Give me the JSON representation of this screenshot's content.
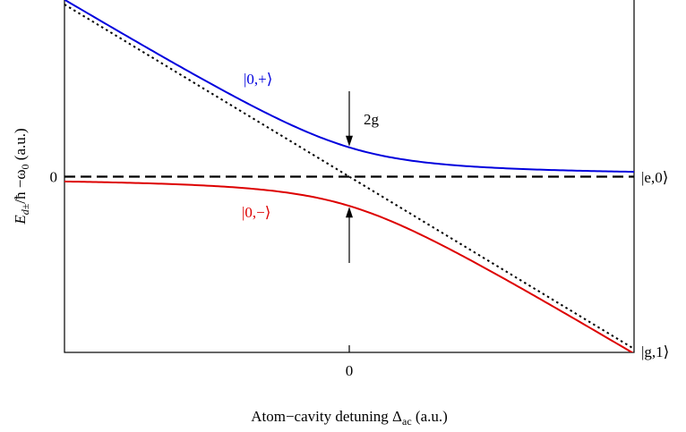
{
  "chart_data": {
    "type": "line",
    "title": "",
    "xlabel": {
      "prefix": "Atom−cavity detuning Δ",
      "sub": "ac",
      "suffix": " (a.u.)"
    },
    "ylabel": {
      "e": "E",
      "sub": "d±",
      "rest": "/ħ −ω",
      "sub2": "0",
      "units": " (a.u.)"
    },
    "xlim": [
      -1,
      1
    ],
    "ylim": [
      -1,
      1
    ],
    "x_ticks": [
      {
        "value": 0,
        "label": "0"
      }
    ],
    "y_ticks": [
      {
        "value": 0,
        "label": "0"
      }
    ],
    "g": 0.17,
    "series": [
      {
        "name": "|0,+⟩",
        "color": "#0000dd",
        "style": "solid",
        "x": [
          -1.0,
          -0.8,
          -0.6,
          -0.4,
          -0.2,
          0.0,
          0.2,
          0.4,
          0.6,
          0.8,
          1.0
        ],
        "y": [
          1.03,
          0.83,
          0.64,
          0.45,
          0.29,
          0.17,
          0.1,
          0.06,
          0.04,
          0.035,
          0.03
        ]
      },
      {
        "name": "|0,−⟩",
        "color": "#dd0000",
        "style": "solid",
        "x": [
          -1.0,
          -0.8,
          -0.6,
          -0.4,
          -0.2,
          0.0,
          0.2,
          0.4,
          0.6,
          0.8,
          1.0
        ],
        "y": [
          -0.03,
          -0.035,
          -0.04,
          -0.06,
          -0.1,
          -0.17,
          -0.29,
          -0.45,
          -0.64,
          -0.83,
          -1.03
        ]
      },
      {
        "name": "|e,0⟩",
        "color": "#000000",
        "style": "dashed",
        "x": [
          -1.0,
          1.0
        ],
        "y": [
          0.0,
          0.0
        ]
      },
      {
        "name": "|g,1⟩",
        "color": "#000000",
        "style": "dotted",
        "x": [
          -1.0,
          1.0
        ],
        "y": [
          1.0,
          -1.0
        ]
      }
    ],
    "annotations": {
      "upper_label": "|0,+⟩",
      "lower_label": "|0,−⟩",
      "gap_label": "2g",
      "right_label_e": "|e,0⟩",
      "right_label_g": "|g,1⟩"
    },
    "grid": false,
    "legend": "none"
  }
}
